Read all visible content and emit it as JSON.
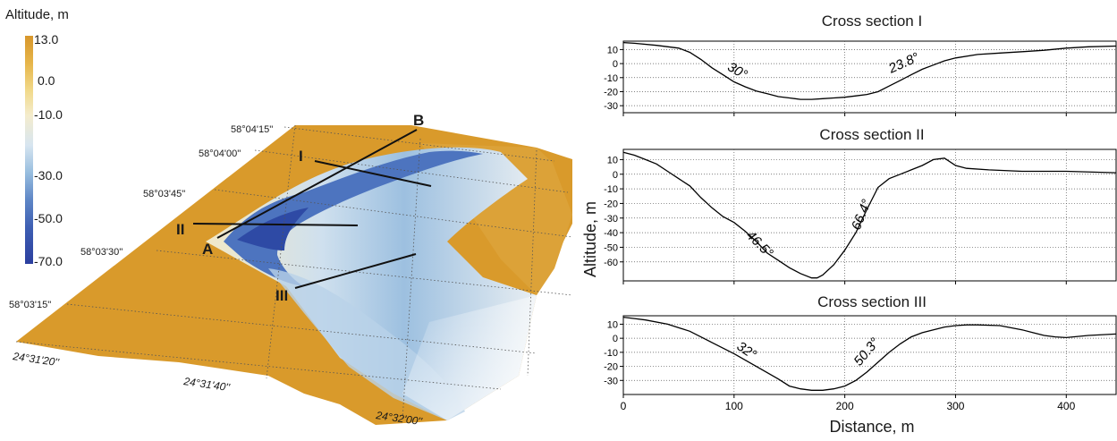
{
  "colorbar": {
    "title": "Altitude, m",
    "ticks": [
      "13.0",
      "0.0",
      "-10.0",
      "-30.0",
      "-50.0",
      "-70.0"
    ]
  },
  "map": {
    "lat_labels": [
      "58°04'15''",
      "58°04'00''",
      "58°03'45''",
      "58°03'30''",
      "58°03'15''"
    ],
    "lon_labels": [
      "24°31'20''",
      "24°31'40''",
      "24°32'00''"
    ],
    "section_labels": {
      "I": "I",
      "II": "II",
      "III": "III",
      "A": "A",
      "B": "B"
    }
  },
  "colors": {
    "high": "#d99a2b",
    "mid": "#f3e9c2",
    "low": "#2d47a8",
    "curve": "#000000",
    "grid": "#555555"
  },
  "axes": {
    "ylabel": "Altitude, m",
    "xlabel": "Distance, m"
  },
  "chart_data": [
    {
      "type": "line",
      "title": "Cross section I",
      "xlim": [
        0,
        445
      ],
      "ylim": [
        -35,
        16
      ],
      "x_ticks": [
        0,
        100,
        200,
        300,
        400
      ],
      "y_ticks": [
        10,
        0,
        -10,
        -20,
        -30
      ],
      "x": [
        0,
        10,
        30,
        50,
        60,
        70,
        80,
        90,
        100,
        110,
        120,
        130,
        140,
        150,
        160,
        170,
        180,
        190,
        200,
        210,
        220,
        230,
        240,
        250,
        260,
        270,
        280,
        290,
        300,
        320,
        340,
        360,
        380,
        400,
        420,
        445
      ],
      "y": [
        15,
        14.5,
        13,
        11,
        8,
        3,
        -3,
        -8,
        -13,
        -16.5,
        -19.5,
        -21.5,
        -23.5,
        -24.5,
        -25.5,
        -25.5,
        -25,
        -24.5,
        -24,
        -23,
        -22,
        -20,
        -16,
        -12,
        -8,
        -4,
        -1,
        2,
        4,
        6.5,
        7.5,
        8.5,
        9.5,
        11,
        12,
        12.5
      ],
      "annotations": [
        "30°",
        "23.8°"
      ],
      "grid": true
    },
    {
      "type": "line",
      "title": "Cross section II",
      "xlim": [
        0,
        445
      ],
      "ylim": [
        -73,
        17
      ],
      "x_ticks": [
        0,
        100,
        200,
        300,
        400
      ],
      "y_ticks": [
        10,
        0,
        -10,
        -20,
        -30,
        -40,
        -50,
        -60
      ],
      "x": [
        0,
        10,
        20,
        30,
        40,
        50,
        60,
        70,
        80,
        90,
        100,
        110,
        120,
        130,
        140,
        150,
        160,
        170,
        175,
        180,
        190,
        200,
        210,
        220,
        230,
        240,
        250,
        260,
        270,
        280,
        290,
        300,
        310,
        330,
        360,
        400,
        445
      ],
      "y": [
        15,
        13,
        10,
        7,
        2,
        -3,
        -8,
        -16,
        -23,
        -29,
        -33,
        -39,
        -46,
        -54,
        -59,
        -64,
        -68,
        -71,
        -71,
        -69,
        -62,
        -52,
        -40,
        -24,
        -9,
        -3,
        0,
        3,
        6,
        10,
        11,
        6,
        4,
        3,
        2,
        2,
        1
      ],
      "annotations": [
        "46.5°",
        "66.4°"
      ],
      "grid": true
    },
    {
      "type": "line",
      "title": "Cross section III",
      "xlim": [
        0,
        445
      ],
      "ylim": [
        -40,
        16
      ],
      "x_ticks": [
        0,
        100,
        200,
        300,
        400
      ],
      "y_ticks": [
        10,
        0,
        -10,
        -20,
        -30
      ],
      "x": [
        0,
        10,
        20,
        40,
        60,
        80,
        100,
        120,
        140,
        150,
        160,
        170,
        180,
        190,
        200,
        210,
        220,
        230,
        240,
        250,
        260,
        270,
        280,
        290,
        300,
        310,
        320,
        340,
        360,
        370,
        380,
        390,
        400,
        420,
        445
      ],
      "y": [
        15,
        14,
        13,
        10,
        5,
        -3,
        -11,
        -20,
        -29,
        -34,
        -36,
        -37,
        -37,
        -36,
        -34,
        -30,
        -24,
        -17,
        -10,
        -4,
        1,
        4,
        6,
        8,
        9,
        9.5,
        9.5,
        9,
        6,
        4,
        2,
        1,
        0.5,
        2,
        3
      ],
      "annotations": [
        "32°",
        "50.3°"
      ],
      "grid": true
    }
  ]
}
